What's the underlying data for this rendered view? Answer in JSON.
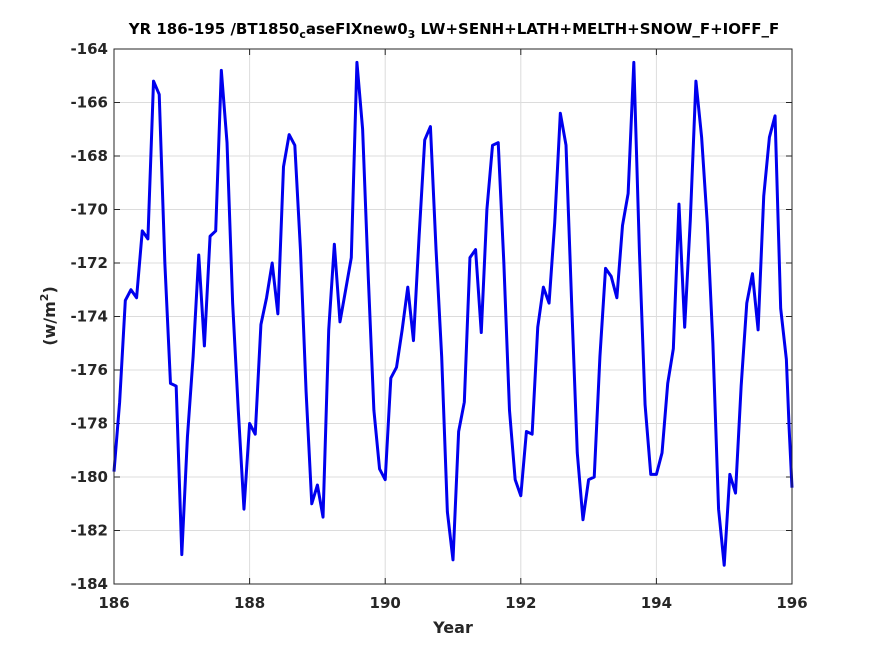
{
  "chart_data": {
    "type": "line",
    "title_parts": [
      "YR 186-195 /BT1850",
      "c",
      "aseFIXnew0",
      "3",
      " LW+SENH+LATH+MELTH+SNOW_F+IOFF_F"
    ],
    "xlabel": "Year",
    "ylabel_parts": [
      "(w/m",
      "2",
      ")"
    ],
    "xlim": [
      186,
      196
    ],
    "ylim": [
      -184,
      -164
    ],
    "xticks": [
      186,
      188,
      190,
      192,
      194,
      196
    ],
    "yticks": [
      -184,
      -182,
      -180,
      -178,
      -176,
      -174,
      -172,
      -170,
      -168,
      -166,
      -164
    ],
    "grid": true,
    "line_color": "#0000ee",
    "series": [
      {
        "x": [
          186.0,
          186.083,
          186.167,
          186.25,
          186.333,
          186.417,
          186.5,
          186.583,
          186.667,
          186.75,
          186.833,
          186.917,
          187.0,
          187.083,
          187.167,
          187.25,
          187.333,
          187.417,
          187.5,
          187.583,
          187.667,
          187.75,
          187.833,
          187.917,
          188.0,
          188.083,
          188.167,
          188.25,
          188.333,
          188.417,
          188.5,
          188.583,
          188.667,
          188.75,
          188.833,
          188.917,
          189.0,
          189.083,
          189.167,
          189.25,
          189.333,
          189.417,
          189.5,
          189.583,
          189.667,
          189.75,
          189.833,
          189.917,
          190.0,
          190.083,
          190.167,
          190.25,
          190.333,
          190.417,
          190.5,
          190.583,
          190.667,
          190.75,
          190.833,
          190.917,
          191.0,
          191.083,
          191.167,
          191.25,
          191.333,
          191.417,
          191.5,
          191.583,
          191.667,
          191.75,
          191.833,
          191.917,
          192.0,
          192.083,
          192.167,
          192.25,
          192.333,
          192.417,
          192.5,
          192.583,
          192.667,
          192.75,
          192.833,
          192.917,
          193.0,
          193.083,
          193.167,
          193.25,
          193.333,
          193.417,
          193.5,
          193.583,
          193.667,
          193.75,
          193.833,
          193.917,
          194.0,
          194.083,
          194.167,
          194.25,
          194.333,
          194.417,
          194.5,
          194.583,
          194.667,
          194.75,
          194.833,
          194.917,
          195.0,
          195.083,
          195.167,
          195.25,
          195.333,
          195.417,
          195.5,
          195.583,
          195.667,
          195.75,
          195.833,
          195.917
        ],
        "y": [
          -179.8,
          -177.2,
          -173.4,
          -173.0,
          -173.3,
          -170.8,
          -171.1,
          -165.2,
          -165.7,
          -172.0,
          -176.5,
          -176.6,
          -182.9,
          -178.5,
          -175.5,
          -171.7,
          -175.1,
          -171.0,
          -170.8,
          -164.8,
          -167.5,
          -173.5,
          -177.5,
          -181.2,
          -178.0,
          -178.4,
          -174.3,
          -173.3,
          -172.0,
          -173.9,
          -168.4,
          -167.2,
          -167.6,
          -171.5,
          -176.8,
          -181.0,
          -180.3,
          -181.5,
          -174.5,
          -171.3,
          -174.2,
          -173.0,
          -171.8,
          -164.5,
          -167.0,
          -172.5,
          -177.5,
          -179.7,
          -180.1,
          -176.3,
          -175.9,
          -174.5,
          -172.9,
          -174.9,
          -171.0,
          -167.4,
          -166.9,
          -171.5,
          -175.5,
          -181.3,
          -183.1,
          -178.3,
          -177.2,
          -171.8,
          -171.5,
          -174.6,
          -170.0,
          -167.6,
          -167.5,
          -172.0,
          -177.5,
          -180.1,
          -180.7,
          -178.3,
          -178.4,
          -174.4,
          -172.9,
          -173.5,
          -170.5,
          -166.4,
          -167.6,
          -173.5,
          -179.1,
          -181.6,
          -180.1,
          -180.0,
          -175.5,
          -172.2,
          -172.5,
          -173.3,
          -170.6,
          -169.4,
          -164.5,
          -171.6,
          -177.3,
          -179.9,
          -179.9,
          -179.1,
          -176.5,
          -175.2,
          -169.8,
          -174.4,
          -170.4,
          -165.2,
          -167.3,
          -170.5,
          -175.0,
          -181.2,
          -183.3,
          -179.9,
          -180.6,
          -176.6,
          -173.5,
          -172.4,
          -174.5,
          -169.5,
          -167.3,
          -166.5,
          -173.7,
          -175.6
        ]
      }
    ],
    "tail_points": [
      [
        195.958,
        -178.2
      ],
      [
        196.0,
        -180.4
      ]
    ]
  }
}
